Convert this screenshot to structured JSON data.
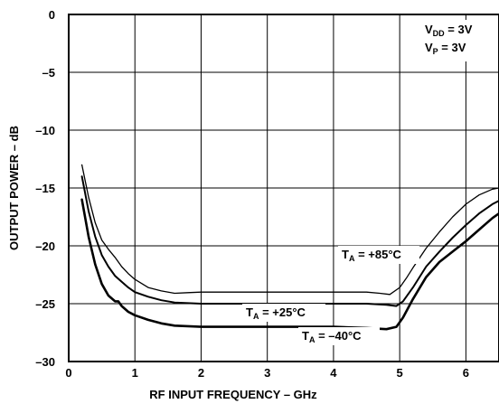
{
  "chart_data": {
    "type": "line",
    "title": "",
    "xlabel": "RF INPUT FREQUENCY – GHz",
    "ylabel": "OUTPUT POWER – dB",
    "xlim": [
      0,
      6.5
    ],
    "ylim": [
      -30,
      0
    ],
    "x_ticks": [
      "0",
      "1",
      "2",
      "3",
      "4",
      "5",
      "6"
    ],
    "y_ticks": [
      "0",
      "–5",
      "–10",
      "–15",
      "–20",
      "–25",
      "–30"
    ],
    "grid": true,
    "conditions": {
      "vdd_label": "V",
      "vdd_sub": "DD",
      "vdd_value": " = 3V",
      "vp_label": "V",
      "vp_sub": "P",
      "vp_value": " = 3V"
    },
    "series": [
      {
        "label_main": "T",
        "label_sub": "A",
        "label_value": " = +85°C",
        "stroke_width": 1.3,
        "points": [
          [
            0.2,
            -13.0
          ],
          [
            0.3,
            -15.8
          ],
          [
            0.4,
            -18.0
          ],
          [
            0.5,
            -19.5
          ],
          [
            0.6,
            -20.3
          ],
          [
            0.7,
            -21.0
          ],
          [
            0.8,
            -21.8
          ],
          [
            0.9,
            -22.4
          ],
          [
            1.0,
            -22.9
          ],
          [
            1.2,
            -23.6
          ],
          [
            1.4,
            -23.9
          ],
          [
            1.6,
            -24.1
          ],
          [
            1.8,
            -24.05
          ],
          [
            2.0,
            -24.0
          ],
          [
            2.5,
            -24.0
          ],
          [
            3.0,
            -24.0
          ],
          [
            3.5,
            -24.0
          ],
          [
            4.0,
            -24.0
          ],
          [
            4.5,
            -24.0
          ],
          [
            4.7,
            -24.1
          ],
          [
            4.85,
            -24.2
          ],
          [
            5.0,
            -23.6
          ],
          [
            5.1,
            -22.8
          ],
          [
            5.2,
            -21.9
          ],
          [
            5.4,
            -20.2
          ],
          [
            5.6,
            -18.8
          ],
          [
            5.8,
            -17.5
          ],
          [
            6.0,
            -16.4
          ],
          [
            6.2,
            -15.6
          ],
          [
            6.4,
            -15.1
          ],
          [
            6.5,
            -15.0
          ]
        ]
      },
      {
        "label_main": "T",
        "label_sub": "A",
        "label_value": " = +25°C",
        "stroke_width": 2.0,
        "points": [
          [
            0.2,
            -14.0
          ],
          [
            0.3,
            -17.0
          ],
          [
            0.4,
            -19.2
          ],
          [
            0.5,
            -20.8
          ],
          [
            0.6,
            -21.8
          ],
          [
            0.7,
            -22.6
          ],
          [
            0.8,
            -23.1
          ],
          [
            0.9,
            -23.6
          ],
          [
            1.0,
            -24.0
          ],
          [
            1.2,
            -24.4
          ],
          [
            1.4,
            -24.7
          ],
          [
            1.6,
            -24.9
          ],
          [
            2.0,
            -25.0
          ],
          [
            2.5,
            -25.0
          ],
          [
            3.0,
            -25.0
          ],
          [
            3.5,
            -25.0
          ],
          [
            4.0,
            -25.0
          ],
          [
            4.5,
            -25.0
          ],
          [
            4.8,
            -25.1
          ],
          [
            4.95,
            -25.2
          ],
          [
            5.05,
            -24.8
          ],
          [
            5.2,
            -23.6
          ],
          [
            5.4,
            -21.8
          ],
          [
            5.6,
            -20.5
          ],
          [
            5.8,
            -19.3
          ],
          [
            6.0,
            -18.2
          ],
          [
            6.2,
            -17.2
          ],
          [
            6.4,
            -16.4
          ],
          [
            6.5,
            -16.1
          ]
        ]
      },
      {
        "label_main": "T",
        "label_sub": "A",
        "label_value": " = –40°C",
        "stroke_width": 2.6,
        "points": [
          [
            0.2,
            -16.0
          ],
          [
            0.3,
            -19.2
          ],
          [
            0.4,
            -21.6
          ],
          [
            0.5,
            -23.3
          ],
          [
            0.6,
            -24.3
          ],
          [
            0.7,
            -24.8
          ],
          [
            0.75,
            -24.8
          ],
          [
            0.8,
            -25.2
          ],
          [
            0.9,
            -25.7
          ],
          [
            1.0,
            -26.0
          ],
          [
            1.2,
            -26.4
          ],
          [
            1.4,
            -26.7
          ],
          [
            1.6,
            -26.9
          ],
          [
            2.0,
            -27.0
          ],
          [
            2.5,
            -27.0
          ],
          [
            3.0,
            -27.0
          ],
          [
            3.5,
            -27.0
          ],
          [
            4.0,
            -27.0
          ],
          [
            4.5,
            -27.1
          ],
          [
            4.8,
            -27.2
          ],
          [
            4.95,
            -27.0
          ],
          [
            5.05,
            -26.2
          ],
          [
            5.2,
            -24.6
          ],
          [
            5.4,
            -22.7
          ],
          [
            5.6,
            -21.4
          ],
          [
            5.8,
            -20.5
          ],
          [
            6.0,
            -19.6
          ],
          [
            6.2,
            -18.6
          ],
          [
            6.4,
            -17.6
          ],
          [
            6.5,
            -17.2
          ]
        ]
      }
    ]
  }
}
